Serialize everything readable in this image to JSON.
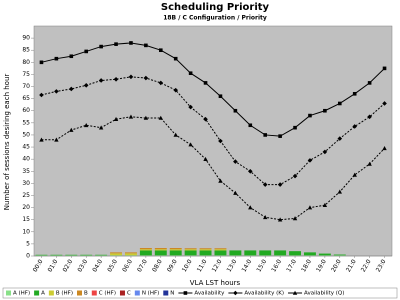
{
  "chart_data": {
    "type": "bar_line",
    "title": "Scheduling Priority",
    "subtitle": "18B / C Configuration / Priority",
    "y_label": "Number of sessions desiring each hour",
    "x_label": "VLA LST hours",
    "categories": [
      "00:0",
      "01:0",
      "02:0",
      "03:0",
      "04:0",
      "05:0",
      "06:0",
      "07:0",
      "08:0",
      "09:0",
      "10:0",
      "11:0",
      "12:0",
      "13:0",
      "14:0",
      "15:0",
      "16:0",
      "17:0",
      "18:0",
      "19:0",
      "20:0",
      "21:0",
      "22:0",
      "23:0"
    ],
    "ylim": [
      0,
      95
    ],
    "yticks": [
      0,
      5,
      10,
      15,
      20,
      25,
      30,
      35,
      40,
      45,
      50,
      55,
      60,
      65,
      70,
      75,
      80,
      85,
      90
    ],
    "grid": false,
    "background": "#c0c0c0",
    "series": [
      {
        "name": "A (HF)",
        "type": "bar",
        "color": "#88e088",
        "values": [
          0.3,
          0.3,
          0.3,
          0.3,
          0.3,
          0.3,
          0.3,
          0.3,
          0.3,
          0.3,
          0.3,
          0.3,
          0.3,
          0.3,
          0.3,
          0.3,
          0.3,
          0.3,
          0.3,
          0.3,
          0.3,
          0,
          0,
          0
        ]
      },
      {
        "name": "A",
        "type": "bar",
        "color": "#22aa22",
        "values": [
          0.2,
          0.2,
          0.2,
          0.2,
          0.2,
          0,
          0,
          2,
          2,
          2,
          2,
          2,
          2,
          2,
          2,
          2,
          2,
          1.7,
          1.2,
          0.7,
          0.3,
          0,
          0,
          0
        ]
      },
      {
        "name": "B (HF)",
        "type": "bar",
        "color": "#cccc33",
        "values": [
          0,
          0,
          0,
          0,
          0,
          0.8,
          0.8,
          0.5,
          0.5,
          0.5,
          0.5,
          0.5,
          0.5,
          0,
          0,
          0,
          0,
          0,
          0,
          0,
          0,
          0,
          0,
          0
        ]
      },
      {
        "name": "B",
        "type": "bar",
        "color": "#cc8822",
        "values": [
          0,
          0,
          0,
          0,
          0,
          0.4,
          0.4,
          0.5,
          0.5,
          0.5,
          0.4,
          0.4,
          0.4,
          0,
          0,
          0,
          0,
          0,
          0,
          0,
          0,
          0,
          0,
          0
        ]
      },
      {
        "name": "C (HF)",
        "type": "bar",
        "color": "#ee4444",
        "values": [
          0,
          0,
          0,
          0,
          0,
          0,
          0,
          0,
          0,
          0,
          0,
          0,
          0,
          0,
          0,
          0,
          0,
          0,
          0,
          0,
          0,
          0,
          0,
          0
        ]
      },
      {
        "name": "C",
        "type": "bar",
        "color": "#aa2222",
        "values": [
          0,
          0,
          0,
          0,
          0,
          0,
          0,
          0,
          0,
          0,
          0,
          0,
          0,
          0,
          0,
          0,
          0,
          0,
          0,
          0,
          0,
          0,
          0,
          0
        ]
      },
      {
        "name": "N (HF)",
        "type": "bar",
        "color": "#6688ee",
        "values": [
          0,
          0,
          0,
          0,
          0,
          0,
          0,
          0,
          0,
          0,
          0,
          0,
          0,
          0,
          0,
          0,
          0,
          0,
          0,
          0,
          0,
          0,
          0,
          0
        ]
      },
      {
        "name": "N",
        "type": "bar",
        "color": "#223399",
        "values": [
          0,
          0,
          0,
          0,
          0,
          0,
          0,
          0,
          0,
          0,
          0,
          0,
          0,
          0,
          0,
          0,
          0,
          0,
          0,
          0,
          0,
          0,
          0,
          0
        ]
      },
      {
        "name": "Availability",
        "type": "line",
        "marker": "square",
        "line_style": "solid",
        "color": "#000000",
        "values": [
          80,
          81.5,
          82.5,
          84.5,
          86.5,
          87.5,
          88,
          87,
          85,
          81.5,
          75.5,
          71.5,
          66,
          60,
          54,
          50,
          49.5,
          53,
          58,
          60,
          63,
          67,
          71.5,
          77.5
        ]
      },
      {
        "name": "Availability (K)",
        "type": "line",
        "marker": "diamond",
        "line_style": "dotted",
        "color": "#000000",
        "values": [
          66.5,
          68,
          69,
          70.5,
          72.5,
          73,
          74,
          73.5,
          71.5,
          68.5,
          61.5,
          56.5,
          47.5,
          39,
          35,
          29.5,
          29.5,
          33,
          39.5,
          43,
          48.5,
          53.5,
          57.5,
          63
        ]
      },
      {
        "name": "Availability (Q)",
        "type": "line",
        "marker": "triangle",
        "line_style": "dotted",
        "color": "#000000",
        "values": [
          48,
          48,
          52,
          54,
          53,
          56.5,
          57.5,
          57,
          57,
          50,
          46,
          40,
          31,
          26,
          20,
          16,
          15,
          15.5,
          20,
          21,
          26.5,
          33.5,
          38,
          44.5
        ]
      }
    ]
  }
}
